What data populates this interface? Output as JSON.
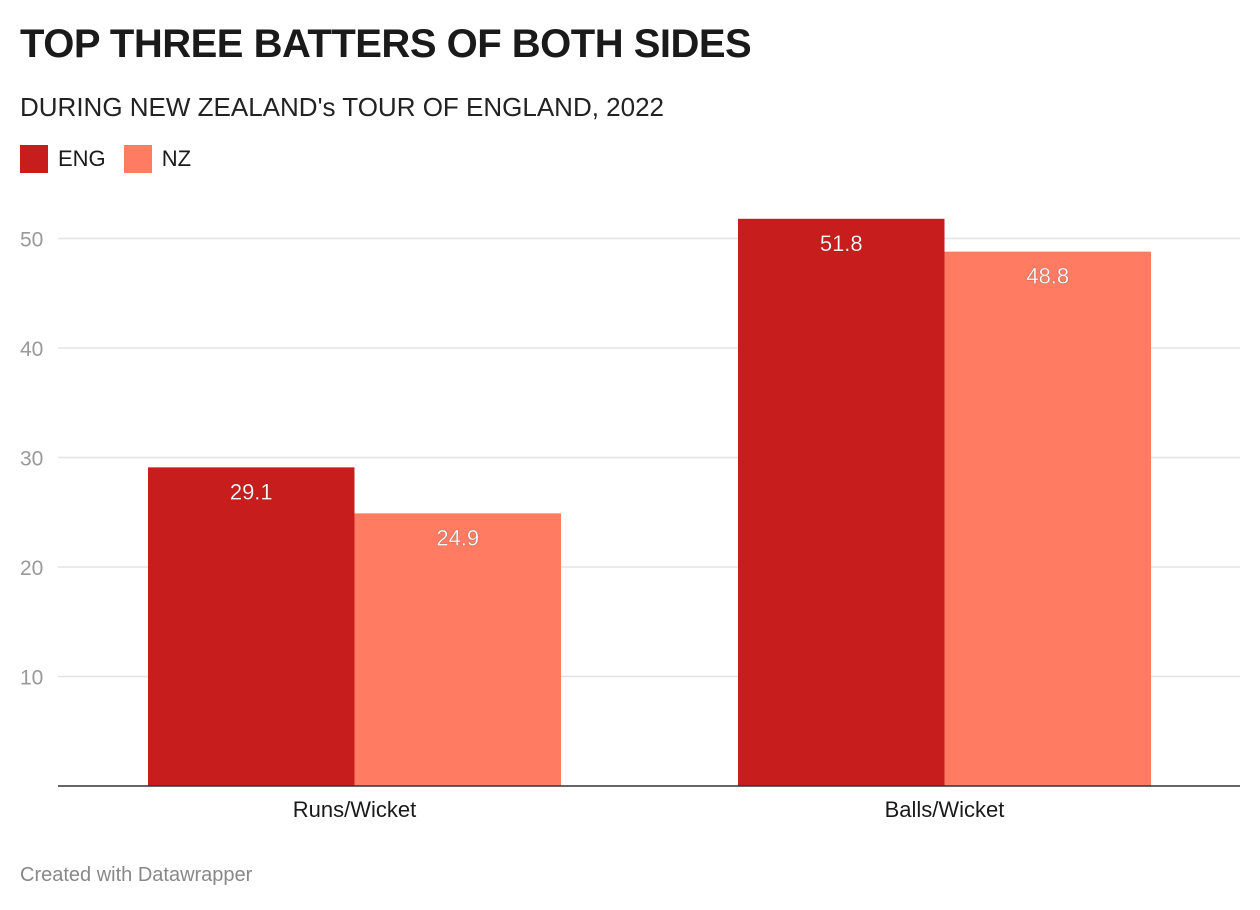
{
  "title": "TOP THREE BATTERS OF BOTH SIDES",
  "subtitle": "DURING NEW ZEALAND's TOUR OF ENGLAND, 2022",
  "footer": "Created with Datawrapper",
  "chart_data": {
    "type": "bar",
    "categories": [
      "Runs/Wicket",
      "Balls/Wicket"
    ],
    "series": [
      {
        "name": "ENG",
        "color": "#c71e1d",
        "values": [
          29.1,
          51.8
        ]
      },
      {
        "name": "NZ",
        "color": "#ff7c62",
        "values": [
          24.9,
          48.8
        ]
      }
    ],
    "yticks": [
      10,
      20,
      30,
      40,
      50
    ],
    "ylim": [
      0,
      52
    ],
    "legend": "top-left",
    "grid": true
  }
}
